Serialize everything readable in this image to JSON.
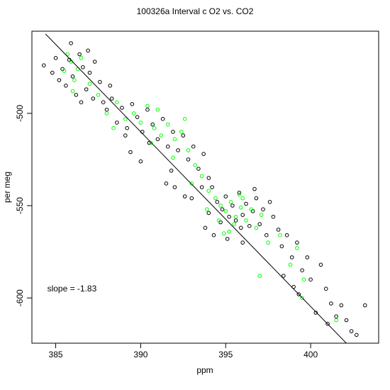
{
  "chart_data": {
    "type": "scatter",
    "title": "100326a   Interval c O2 vs. CO2",
    "xlabel": "ppm",
    "ylabel": "per meg",
    "xlim": [
      383.6,
      404.0
    ],
    "ylim": [
      -624.5,
      -455.5
    ],
    "xticks": [
      385,
      390,
      395,
      400
    ],
    "yticks": [
      -500,
      -550,
      -600
    ],
    "xtick_labels": [
      "385",
      "390",
      "395",
      "400"
    ],
    "ytick_labels": [
      "-500",
      "-550",
      "-600"
    ],
    "grid": false,
    "legend": "none",
    "annotation": {
      "label": "slope =  -1.83",
      "x": 384.5,
      "y": -595
    },
    "fit_line": {
      "slope": -1.83,
      "x": [
        384.4,
        404.0
      ],
      "y": [
        -457.0,
        -642.5
      ]
    },
    "series": [
      {
        "marker": "open-circle",
        "color": "#000000",
        "points": [
          [
            384.3,
            -474
          ],
          [
            384.8,
            -478
          ],
          [
            385.0,
            -470
          ],
          [
            385.2,
            -482
          ],
          [
            385.4,
            -476
          ],
          [
            385.6,
            -485
          ],
          [
            385.8,
            -471
          ],
          [
            386.0,
            -480
          ],
          [
            386.2,
            -490
          ],
          [
            386.4,
            -468
          ],
          [
            386.6,
            -475
          ],
          [
            386.8,
            -487
          ],
          [
            387.0,
            -478
          ],
          [
            387.3,
            -472
          ],
          [
            387.6,
            -483
          ],
          [
            387.2,
            -492
          ],
          [
            386.5,
            -494
          ],
          [
            385.9,
            -462
          ],
          [
            386.9,
            -466
          ],
          [
            387.8,
            -494
          ],
          [
            388.0,
            -498
          ],
          [
            388.3,
            -492
          ],
          [
            388.6,
            -505
          ],
          [
            388.9,
            -497
          ],
          [
            389.2,
            -508
          ],
          [
            389.5,
            -495
          ],
          [
            389.8,
            -502
          ],
          [
            390.1,
            -510
          ],
          [
            390.4,
            -498
          ],
          [
            390.7,
            -506
          ],
          [
            391.0,
            -514
          ],
          [
            391.3,
            -503
          ],
          [
            391.6,
            -518
          ],
          [
            391.9,
            -510
          ],
          [
            392.2,
            -520
          ],
          [
            392.5,
            -512
          ],
          [
            392.8,
            -525
          ],
          [
            393.1,
            -518
          ],
          [
            393.4,
            -530
          ],
          [
            393.7,
            -522
          ],
          [
            394.0,
            -535
          ],
          [
            390.0,
            -526
          ],
          [
            389.4,
            -521
          ],
          [
            392.0,
            -540
          ],
          [
            393.0,
            -546
          ],
          [
            391.5,
            -538
          ],
          [
            394.2,
            -540
          ],
          [
            394.5,
            -548
          ],
          [
            394.8,
            -552
          ],
          [
            395.0,
            -545
          ],
          [
            395.2,
            -556
          ],
          [
            395.4,
            -550
          ],
          [
            395.6,
            -558
          ],
          [
            395.8,
            -543
          ],
          [
            396.0,
            -555
          ],
          [
            396.2,
            -549
          ],
          [
            396.4,
            -561
          ],
          [
            396.6,
            -553
          ],
          [
            396.8,
            -546
          ],
          [
            397.0,
            -560
          ],
          [
            397.2,
            -552
          ],
          [
            397.4,
            -566
          ],
          [
            393.8,
            -562
          ],
          [
            394.3,
            -566
          ],
          [
            395.1,
            -568
          ],
          [
            394.0,
            -554
          ],
          [
            396.0,
            -570
          ],
          [
            397.8,
            -556
          ],
          [
            398.1,
            -563
          ],
          [
            398.3,
            -572
          ],
          [
            398.6,
            -566
          ],
          [
            398.9,
            -578
          ],
          [
            399.2,
            -570
          ],
          [
            399.5,
            -585
          ],
          [
            399.8,
            -578
          ],
          [
            400.0,
            -590
          ],
          [
            399.0,
            -594
          ],
          [
            398.4,
            -588
          ],
          [
            399.3,
            -598
          ],
          [
            400.6,
            -582
          ],
          [
            400.9,
            -595
          ],
          [
            401.2,
            -603
          ],
          [
            401.5,
            -610
          ],
          [
            401.8,
            -604
          ],
          [
            402.1,
            -612
          ],
          [
            402.4,
            -618
          ],
          [
            402.7,
            -620
          ],
          [
            403.2,
            -604
          ],
          [
            400.3,
            -608
          ],
          [
            401.0,
            -614
          ],
          [
            392.6,
            -545
          ],
          [
            391.8,
            -531
          ],
          [
            390.5,
            -516
          ],
          [
            389.1,
            -512
          ],
          [
            388.2,
            -485
          ],
          [
            393.6,
            -540
          ],
          [
            394.7,
            -559
          ],
          [
            395.9,
            -562
          ],
          [
            396.7,
            -541
          ],
          [
            397.6,
            -548
          ]
        ]
      },
      {
        "marker": "open-circle",
        "color": "#00ff00",
        "points": [
          [
            385.5,
            -477
          ],
          [
            385.9,
            -472
          ],
          [
            386.1,
            -482
          ],
          [
            386.3,
            -476
          ],
          [
            386.0,
            -488
          ],
          [
            385.7,
            -468
          ],
          [
            386.5,
            -470
          ],
          [
            387.0,
            -484
          ],
          [
            387.5,
            -490
          ],
          [
            388.0,
            -500
          ],
          [
            388.6,
            -494
          ],
          [
            389.1,
            -503
          ],
          [
            389.6,
            -500
          ],
          [
            390.0,
            -505
          ],
          [
            390.4,
            -496
          ],
          [
            390.8,
            -508
          ],
          [
            391.2,
            -512
          ],
          [
            391.6,
            -506
          ],
          [
            392.0,
            -514
          ],
          [
            392.4,
            -510
          ],
          [
            392.8,
            -520
          ],
          [
            393.2,
            -528
          ],
          [
            393.6,
            -534
          ],
          [
            394.0,
            -542
          ],
          [
            394.4,
            -546
          ],
          [
            394.7,
            -550
          ],
          [
            395.0,
            -553
          ],
          [
            395.3,
            -548
          ],
          [
            395.6,
            -556
          ],
          [
            395.9,
            -551
          ],
          [
            396.2,
            -558
          ],
          [
            396.5,
            -552
          ],
          [
            396.8,
            -562
          ],
          [
            397.1,
            -555
          ],
          [
            395.2,
            -564
          ],
          [
            394.6,
            -558
          ],
          [
            393.9,
            -552
          ],
          [
            396.0,
            -546
          ],
          [
            397.5,
            -570
          ],
          [
            398.2,
            -566
          ],
          [
            398.8,
            -582
          ],
          [
            399.2,
            -573
          ],
          [
            399.6,
            -590
          ],
          [
            399.5,
            -600
          ],
          [
            397.0,
            -588
          ],
          [
            401.5,
            -612
          ],
          [
            393.0,
            -538
          ],
          [
            391.9,
            -524
          ],
          [
            390.6,
            -516
          ],
          [
            392.6,
            -503
          ],
          [
            391.0,
            -498
          ],
          [
            388.4,
            -508
          ],
          [
            394.9,
            -565
          ],
          [
            395.5,
            -560
          ],
          [
            395.8,
            -544
          ]
        ]
      }
    ]
  }
}
